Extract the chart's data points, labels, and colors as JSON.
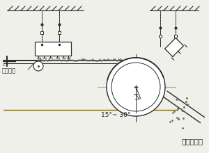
{
  "bg_color": "#f0f0eb",
  "line_color": "#2a2a2a",
  "title": "安装示意图",
  "label_no_mag_roller": "无磁托辊",
  "label_angle": "15°~ 30°",
  "fig_width": 3.0,
  "fig_height": 2.2,
  "dpi": 100
}
